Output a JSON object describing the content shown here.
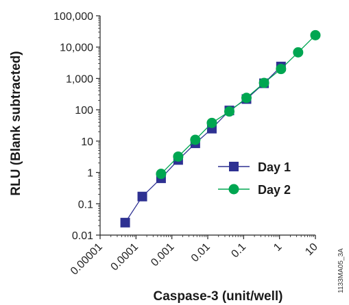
{
  "chart_data": {
    "type": "scatter",
    "xlabel": "Caspase-3 (unit/well)",
    "ylabel": "RLU (Blank subtracted)",
    "x_scale": "log",
    "y_scale": "log",
    "xlim": [
      1e-05,
      10
    ],
    "ylim": [
      0.01,
      100000
    ],
    "x_ticks": [
      1e-05,
      0.0001,
      0.001,
      0.01,
      0.1,
      1,
      10
    ],
    "x_tick_labels": [
      "0.00001",
      "0.0001",
      "0.001",
      "0.01",
      "0.1",
      "1",
      "10"
    ],
    "y_ticks": [
      0.01,
      0.1,
      1,
      10,
      100,
      1000,
      10000,
      100000
    ],
    "y_tick_labels": [
      "0.01",
      "0.1",
      "1",
      "10",
      "100",
      "1,000",
      "10,000",
      "100,000"
    ],
    "grid": false,
    "legend_position": "center-right",
    "series": [
      {
        "name": "Day 1",
        "color": "#2e3192",
        "marker": "square",
        "points": [
          {
            "x": 5e-05,
            "y": 0.025
          },
          {
            "x": 0.00015,
            "y": 0.17
          },
          {
            "x": 0.0005,
            "y": 0.65
          },
          {
            "x": 0.0015,
            "y": 2.5
          },
          {
            "x": 0.0045,
            "y": 8.5
          },
          {
            "x": 0.013,
            "y": 25
          },
          {
            "x": 0.04,
            "y": 95
          },
          {
            "x": 0.12,
            "y": 220
          },
          {
            "x": 0.37,
            "y": 700
          },
          {
            "x": 1.1,
            "y": 2400
          }
        ]
      },
      {
        "name": "Day 2",
        "color": "#00a651",
        "marker": "circle",
        "points": [
          {
            "x": 0.0005,
            "y": 0.9
          },
          {
            "x": 0.0015,
            "y": 3.2
          },
          {
            "x": 0.0045,
            "y": 11
          },
          {
            "x": 0.013,
            "y": 38
          },
          {
            "x": 0.04,
            "y": 88
          },
          {
            "x": 0.12,
            "y": 240
          },
          {
            "x": 0.37,
            "y": 720
          },
          {
            "x": 1.1,
            "y": 2000
          },
          {
            "x": 3.3,
            "y": 6800
          },
          {
            "x": 10,
            "y": 24000
          }
        ]
      }
    ]
  },
  "figure_id": "1133MA05_3A"
}
